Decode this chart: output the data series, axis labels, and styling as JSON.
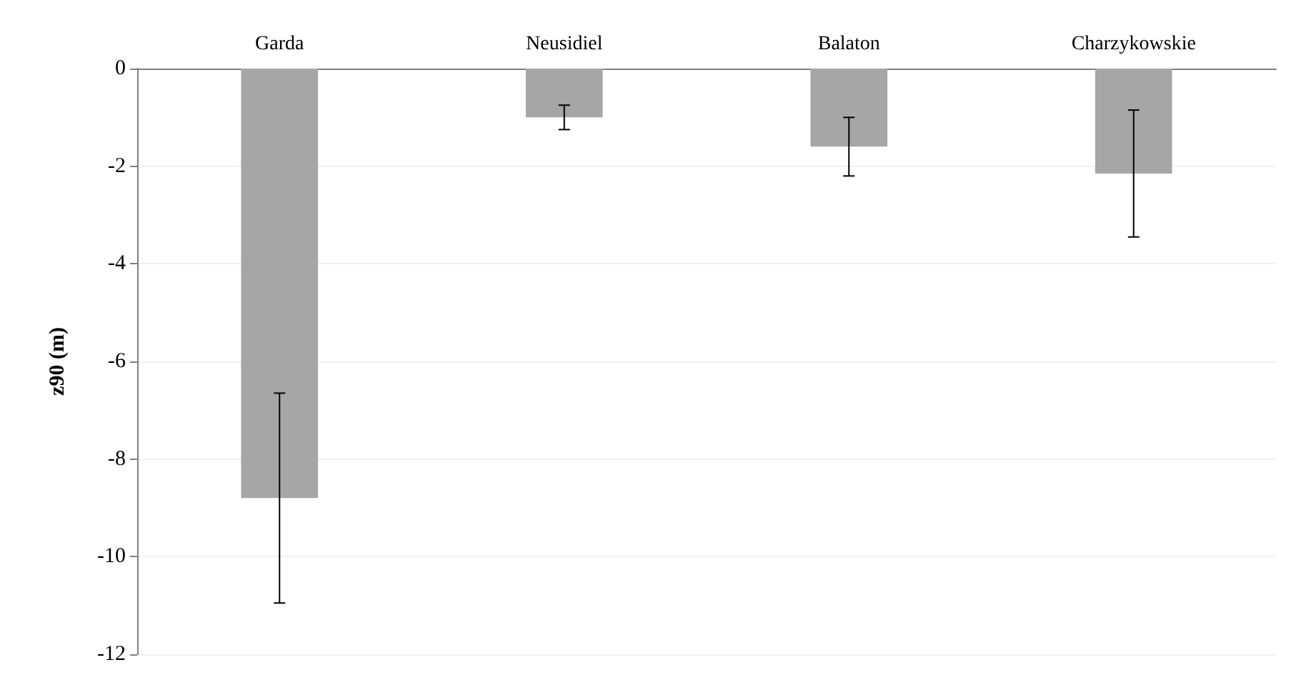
{
  "chart_data": {
    "type": "bar",
    "ylabel": "z90 (m)",
    "categories": [
      "Garda",
      "Neusidiel",
      "Balaton",
      "Charzykowskie"
    ],
    "values": [
      -8.8,
      -1.0,
      -1.6,
      -2.15
    ],
    "errors": [
      2.15,
      0.25,
      0.6,
      1.3
    ],
    "color": "#a6a6a6",
    "ylim": [
      -12,
      0
    ],
    "yticks": [
      -12,
      -10,
      -8,
      -6,
      -4,
      -2,
      0
    ],
    "grid": "y"
  }
}
